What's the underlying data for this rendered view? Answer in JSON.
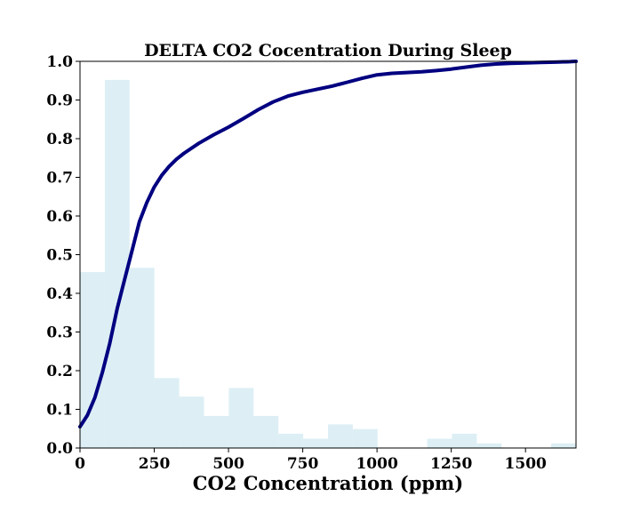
{
  "chart_data": {
    "type": "bar",
    "title": "DELTA CO2 Cocentration During Sleep",
    "xlabel": "CO2 Concentration (ppm)",
    "ylabel": "",
    "xlim": [
      0,
      1670
    ],
    "ylim": [
      0.0,
      1.0
    ],
    "x_ticks": [
      0,
      250,
      500,
      750,
      1000,
      1250,
      1500
    ],
    "y_ticks": [
      "0.0",
      "0.1",
      "0.2",
      "0.3",
      "0.4",
      "0.5",
      "0.6",
      "0.7",
      "0.8",
      "0.9",
      "1.0"
    ],
    "grid": false,
    "legend": "none",
    "histogram": {
      "bin_width": 83.5,
      "bin_starts": [
        0,
        83.5,
        167,
        250.5,
        334,
        417.5,
        501,
        584.5,
        668,
        751.5,
        835,
        918.5,
        1002,
        1085.5,
        1169,
        1252.5,
        1336,
        1419.5,
        1503,
        1586.5
      ],
      "values": [
        0.455,
        0.952,
        0.466,
        0.181,
        0.133,
        0.083,
        0.155,
        0.083,
        0.037,
        0.024,
        0.061,
        0.049,
        0.0,
        0.0,
        0.024,
        0.037,
        0.012,
        0.0,
        0.0,
        0.012
      ],
      "color": "#add8e6"
    },
    "cdf_line": {
      "x": [
        0,
        25,
        50,
        75,
        100,
        125,
        150,
        175,
        200,
        225,
        250,
        275,
        300,
        325,
        350,
        400,
        450,
        500,
        550,
        600,
        650,
        700,
        750,
        800,
        850,
        900,
        950,
        1000,
        1050,
        1100,
        1150,
        1200,
        1250,
        1300,
        1350,
        1400,
        1450,
        1500,
        1550,
        1600,
        1650,
        1670
      ],
      "y": [
        0.055,
        0.085,
        0.13,
        0.195,
        0.27,
        0.36,
        0.435,
        0.51,
        0.585,
        0.635,
        0.675,
        0.705,
        0.728,
        0.747,
        0.762,
        0.788,
        0.81,
        0.83,
        0.852,
        0.875,
        0.895,
        0.91,
        0.92,
        0.928,
        0.936,
        0.946,
        0.956,
        0.965,
        0.969,
        0.971,
        0.973,
        0.976,
        0.98,
        0.985,
        0.99,
        0.993,
        0.995,
        0.996,
        0.997,
        0.998,
        0.999,
        1.0
      ],
      "color": "#000080"
    }
  }
}
